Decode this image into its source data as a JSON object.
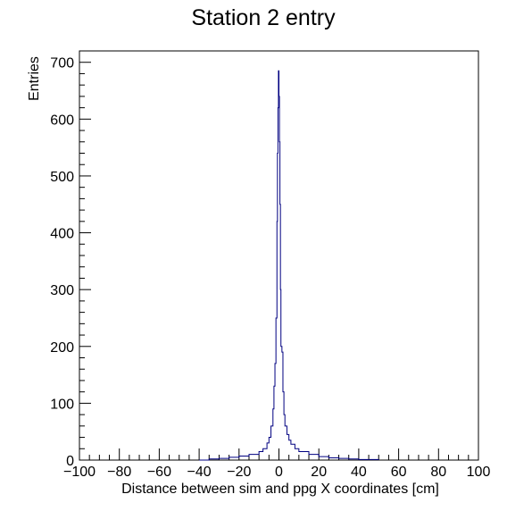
{
  "chart_data": {
    "type": "histogram",
    "title": "Station 2 entry",
    "xlabel": "Distance between sim and ppg X coordinates [cm]",
    "ylabel": "Entries",
    "xlim": [
      -100,
      100
    ],
    "ylim": [
      0,
      720
    ],
    "x_ticks": [
      -100,
      -80,
      -60,
      -40,
      -20,
      0,
      20,
      40,
      60,
      80,
      100
    ],
    "y_ticks": [
      0,
      100,
      200,
      300,
      400,
      500,
      600,
      700
    ],
    "line_color": "#000080",
    "grid": false,
    "legend": "none",
    "series": [
      {
        "x": [
          -40,
          -35,
          -30,
          -25,
          -20,
          -15,
          -10,
          -8,
          -6,
          -5,
          -4,
          -3,
          -2.5,
          -2,
          -1.5,
          -1,
          -0.75,
          -0.5,
          -0.25,
          0,
          0.25,
          0.5,
          0.75,
          1,
          1.5,
          2,
          2.5,
          3,
          4,
          5,
          6,
          8,
          10,
          15,
          20,
          25,
          30,
          35,
          40,
          45,
          50
        ],
        "values": [
          0,
          2,
          3,
          5,
          7,
          10,
          15,
          20,
          30,
          40,
          60,
          90,
          130,
          170,
          250,
          420,
          540,
          620,
          685,
          640,
          560,
          450,
          300,
          200,
          190,
          120,
          80,
          60,
          45,
          35,
          28,
          20,
          15,
          10,
          6,
          4,
          3,
          2,
          1,
          1,
          0
        ]
      }
    ]
  }
}
